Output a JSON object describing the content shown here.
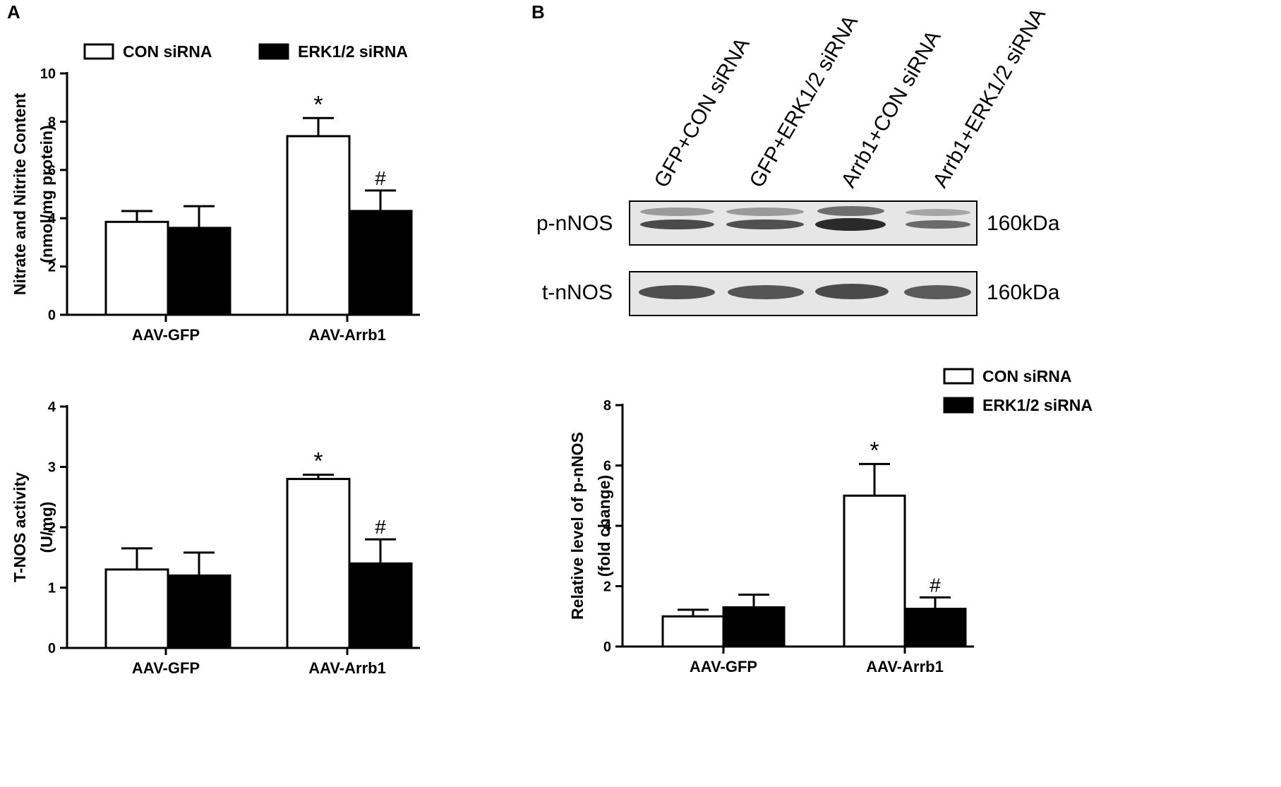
{
  "panels": {
    "a": "A",
    "b": "B"
  },
  "legend": {
    "con": "CON siRNA",
    "erk": "ERK1/2 siRNA"
  },
  "colors": {
    "con": "#ffffff",
    "erk": "#000000",
    "axis": "#000000"
  },
  "blot": {
    "lanes": [
      "GFP+CON siRNA",
      "GFP+ERK1/2 siRNA",
      "Arrb1+CON siRNA",
      "Arrb1+ERK1/2 siRNA"
    ],
    "rows": [
      {
        "label": "p-nNOS",
        "kda": "160kDa"
      },
      {
        "label": "t-nNOS",
        "kda": "160kDa"
      }
    ]
  },
  "chart_data": [
    {
      "type": "bar",
      "categories": [
        "AAV-GFP",
        "AAV-Arrb1"
      ],
      "ylabel": [
        "Nitrate and Nitrite Content",
        "(nmol/mg protein)"
      ],
      "ylim": [
        0,
        10
      ],
      "yticks": [
        0,
        2,
        4,
        6,
        8,
        10
      ],
      "series": [
        {
          "name": "CON siRNA",
          "values": [
            3.85,
            7.4
          ],
          "errors": [
            0.45,
            0.75
          ],
          "marks": [
            "",
            "*"
          ]
        },
        {
          "name": "ERK1/2 siRNA",
          "values": [
            3.6,
            4.3
          ],
          "errors": [
            0.9,
            0.85
          ],
          "marks": [
            "",
            "#"
          ]
        }
      ]
    },
    {
      "type": "bar",
      "categories": [
        "AAV-GFP",
        "AAV-Arrb1"
      ],
      "ylabel": [
        "T-NOS activity",
        "(U/mg)"
      ],
      "ylim": [
        0,
        4
      ],
      "yticks": [
        0,
        1,
        2,
        3,
        4
      ],
      "series": [
        {
          "name": "CON siRNA",
          "values": [
            1.3,
            2.8
          ],
          "errors": [
            0.35,
            0.07
          ],
          "marks": [
            "",
            "*"
          ]
        },
        {
          "name": "ERK1/2 siRNA",
          "values": [
            1.2,
            1.4
          ],
          "errors": [
            0.38,
            0.4
          ],
          "marks": [
            "",
            "#"
          ]
        }
      ]
    },
    {
      "type": "bar",
      "categories": [
        "AAV-GFP",
        "AAV-Arrb1"
      ],
      "ylabel": [
        "Relative level of p-nNOS",
        "(fold change)"
      ],
      "ylim": [
        0,
        8
      ],
      "yticks": [
        0,
        2,
        4,
        6,
        8
      ],
      "series": [
        {
          "name": "CON siRNA",
          "values": [
            1.0,
            5.0
          ],
          "errors": [
            0.22,
            1.05
          ],
          "marks": [
            "",
            "*"
          ]
        },
        {
          "name": "ERK1/2 siRNA",
          "values": [
            1.3,
            1.25
          ],
          "errors": [
            0.42,
            0.38
          ],
          "marks": [
            "",
            "#"
          ]
        }
      ]
    }
  ]
}
